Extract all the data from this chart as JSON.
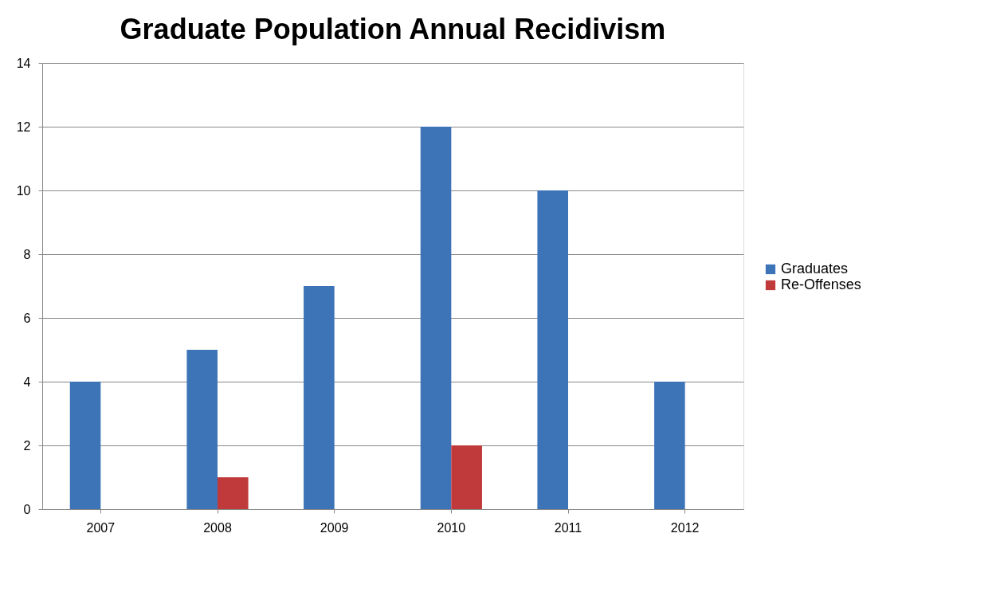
{
  "chart_data": {
    "type": "bar",
    "title": "Graduate Population Annual Recidivism",
    "categories": [
      "2007",
      "2008",
      "2009",
      "2010",
      "2011",
      "2012"
    ],
    "series": [
      {
        "name": "Graduates",
        "color": "#3d74b8",
        "values": [
          4,
          5,
          7,
          12,
          10,
          4
        ]
      },
      {
        "name": "Re-Offenses",
        "color": "#c0393b",
        "values": [
          null,
          1,
          null,
          2,
          null,
          null
        ]
      }
    ],
    "ylim": [
      0,
      14
    ],
    "yticks": [
      0,
      2,
      4,
      6,
      8,
      10,
      12,
      14
    ],
    "grid": "y",
    "legend": "right"
  }
}
